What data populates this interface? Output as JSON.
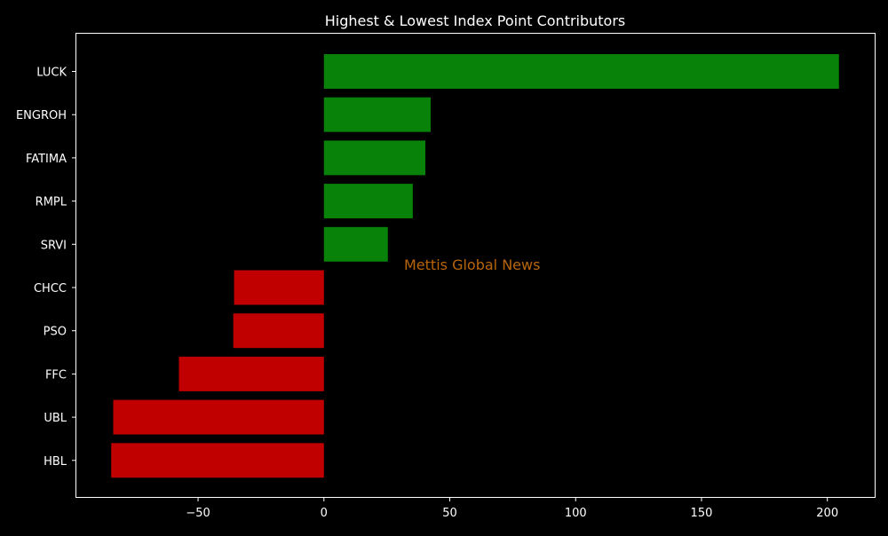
{
  "chart_data": {
    "type": "bar",
    "orientation": "horizontal",
    "title": "Highest & Lowest Index Point Contributors",
    "xlabel": "",
    "ylabel": "",
    "categories": [
      "LUCK",
      "ENGROH",
      "FATIMA",
      "RMPL",
      "SRVI",
      "CHCC",
      "PSO",
      "FFC",
      "UBL",
      "HBL"
    ],
    "values": [
      204.6,
      42.4,
      40.3,
      35.3,
      25.4,
      -35.7,
      -36.0,
      -57.6,
      -83.7,
      -84.5
    ],
    "xlim": [
      -98.7,
      218.8
    ],
    "xticks": [
      -50,
      0,
      50,
      100,
      150,
      200
    ],
    "xtick_labels": [
      "−50",
      "0",
      "50",
      "100",
      "150",
      "200"
    ],
    "grid": false,
    "colors": {
      "positive": "#088208",
      "negative": "#c00000",
      "background": "#000000",
      "text": "#ffffff"
    },
    "annotation": {
      "text": "Mettis Global News",
      "color": "#b8650a"
    }
  }
}
